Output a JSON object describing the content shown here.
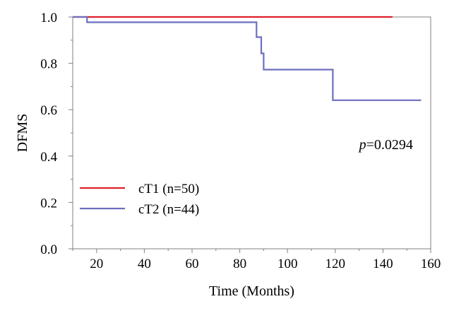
{
  "chart_data": {
    "type": "line",
    "subtype": "kaplan-meier step",
    "title": "",
    "xlabel": "Time (Months)",
    "ylabel": "DFMS",
    "xlim": [
      10,
      160
    ],
    "ylim": [
      0.0,
      1.0
    ],
    "x_ticks": [
      20,
      40,
      60,
      80,
      100,
      120,
      140,
      160
    ],
    "x_tick_labels": [
      "20",
      "40",
      "60",
      "80",
      "100",
      "120",
      "140",
      "160"
    ],
    "y_ticks": [
      0.0,
      0.2,
      0.4,
      0.6,
      0.8,
      1.0
    ],
    "y_tick_labels": [
      "0.0",
      "0.2",
      "0.4",
      "0.6",
      "0.8",
      "1.0"
    ],
    "grid": false,
    "legend_position": "bottom-left",
    "series": [
      {
        "name": "cT1 (n=50)",
        "color": "#e0202a",
        "points": [
          [
            10,
            1.0
          ],
          [
            144,
            1.0
          ]
        ]
      },
      {
        "name": "cT2 (n=44)",
        "color": "#6b6fbf",
        "points": [
          [
            10,
            1.0
          ],
          [
            16,
            1.0
          ],
          [
            16,
            0.977
          ],
          [
            87,
            0.977
          ],
          [
            87,
            0.913
          ],
          [
            89,
            0.913
          ],
          [
            89,
            0.843
          ],
          [
            90,
            0.843
          ],
          [
            90,
            0.773
          ],
          [
            119,
            0.773
          ],
          [
            119,
            0.641
          ],
          [
            156,
            0.641
          ]
        ]
      }
    ],
    "annotations": [
      {
        "italic": "p",
        "text": "=0.0294",
        "x": 130,
        "y": 0.43
      }
    ]
  }
}
